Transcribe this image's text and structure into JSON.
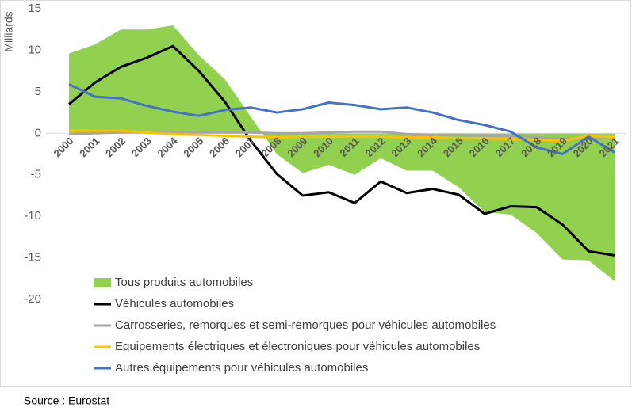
{
  "chart_data": {
    "type": "line",
    "y_label": "Milliards",
    "source": "Source : Eurostat",
    "categories": [
      "2000",
      "2001",
      "2002",
      "2003",
      "2004",
      "2005",
      "2006",
      "2007",
      "2008",
      "2009",
      "2010",
      "2011",
      "2012",
      "2013",
      "2014",
      "2015",
      "2016",
      "2017",
      "2018",
      "2019",
      "2020",
      "2021"
    ],
    "series": [
      {
        "name": "Tous produits automobiles",
        "type": "area",
        "color": "#92d050",
        "values": [
          9.6,
          10.7,
          12.5,
          12.5,
          13.0,
          9.4,
          6.5,
          2.0,
          -2.5,
          -4.8,
          -3.8,
          -5.0,
          -3.0,
          -4.5,
          -4.5,
          -6.5,
          -9.5,
          -9.8,
          -12.0,
          -15.2,
          -15.3,
          -17.8
        ]
      },
      {
        "name": "Véhicules automobiles",
        "type": "line",
        "color": "#000000",
        "values": [
          3.5,
          6.1,
          8.0,
          9.1,
          10.5,
          7.5,
          3.8,
          -0.9,
          -4.9,
          -7.5,
          -7.1,
          -8.4,
          -5.8,
          -7.2,
          -6.7,
          -7.4,
          -9.7,
          -8.8,
          -8.9,
          -11.0,
          -14.2,
          -14.7
        ]
      },
      {
        "name": "Carrosseries, remorques et semi-remorques pour véhicules automobiles",
        "type": "line",
        "color": "#a5a5a5",
        "values": [
          -0.1,
          0,
          0.1,
          0.1,
          0.1,
          0.1,
          0.1,
          0.1,
          0,
          0,
          0.1,
          0.2,
          0.2,
          -0.1,
          -0.2,
          -0.2,
          -0.3,
          -0.3,
          -0.5,
          -0.7,
          -0.6,
          -0.5
        ]
      },
      {
        "name": "Equipements électriques et électroniques pour véhicules automobiles",
        "type": "line",
        "color": "#ffc000",
        "values": [
          0.3,
          0.3,
          0.3,
          0.1,
          -0.1,
          -0.2,
          -0.3,
          -0.4,
          -0.5,
          -0.4,
          -0.4,
          -0.4,
          -0.4,
          -0.5,
          -0.5,
          -0.6,
          -0.6,
          -0.7,
          -0.8,
          -0.9,
          -0.3,
          -0.5
        ]
      },
      {
        "name": "Autres équipements pour véhicules automobiles",
        "type": "line",
        "color": "#4472c4",
        "values": [
          5.9,
          4.4,
          4.2,
          3.3,
          2.6,
          2.1,
          2.8,
          3.1,
          2.5,
          2.9,
          3.7,
          3.4,
          2.9,
          3.1,
          2.5,
          1.6,
          1.0,
          0.2,
          -1.7,
          -2.5,
          -0.4,
          -2.3
        ]
      }
    ],
    "ylim": [
      -20,
      15
    ],
    "yticks": [
      15,
      10,
      5,
      0,
      -5,
      -10,
      -15,
      -20
    ],
    "grid": false,
    "legend": "lower left"
  }
}
